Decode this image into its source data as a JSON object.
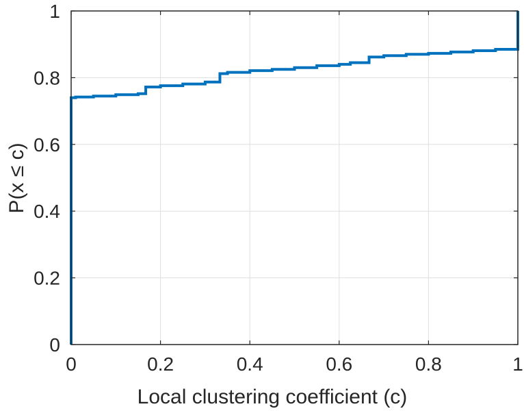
{
  "chart_data": {
    "type": "line",
    "title": "",
    "xlabel": "Local clustering coefficient (c)",
    "ylabel": "P(x ≤ c)",
    "xlim": [
      0,
      1
    ],
    "ylim": [
      0,
      1
    ],
    "xticks": [
      "0",
      "0.2",
      "0.4",
      "0.6",
      "0.8",
      "1"
    ],
    "yticks": [
      "0",
      "0.2",
      "0.4",
      "0.6",
      "0.8",
      "1"
    ],
    "grid": true,
    "legend": "none",
    "series": [
      {
        "color": "#0072bd",
        "style": "stairs",
        "x": [
          0,
          0,
          0.01,
          0.05,
          0.1,
          0.15,
          0.167,
          0.167,
          0.2,
          0.25,
          0.3,
          0.333,
          0.333,
          0.35,
          0.4,
          0.45,
          0.5,
          0.55,
          0.6,
          0.625,
          0.667,
          0.667,
          0.7,
          0.75,
          0.8,
          0.85,
          0.9,
          0.95,
          1,
          1
        ],
        "y": [
          0,
          0.74,
          0.742,
          0.745,
          0.749,
          0.752,
          0.755,
          0.772,
          0.776,
          0.781,
          0.787,
          0.793,
          0.812,
          0.816,
          0.821,
          0.825,
          0.83,
          0.836,
          0.84,
          0.845,
          0.85,
          0.862,
          0.866,
          0.87,
          0.873,
          0.877,
          0.881,
          0.885,
          0.887,
          1.0
        ]
      }
    ]
  }
}
